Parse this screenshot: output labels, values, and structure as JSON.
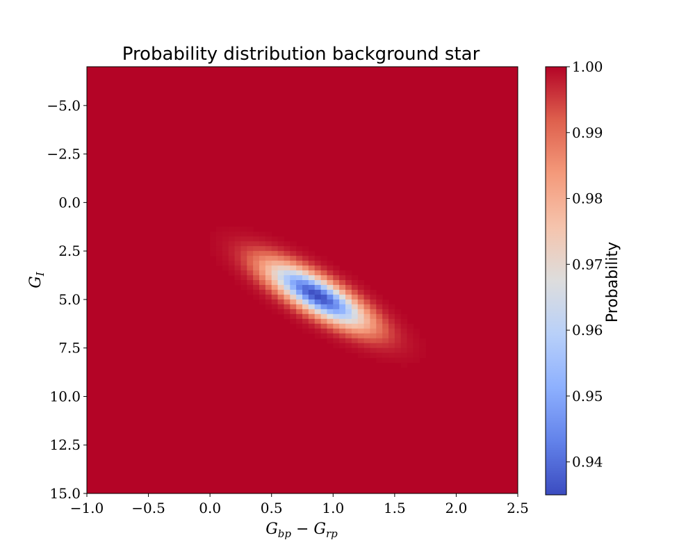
{
  "chart_data": {
    "type": "heatmap",
    "title": "Probability distribution background star",
    "xlabel": "G_bp − G_rp",
    "xlabel_parts": {
      "base1": "G",
      "sub1": "bp",
      "op": " − ",
      "base2": "G",
      "sub2": "rp"
    },
    "ylabel": "G_I",
    "ylabel_parts": {
      "base": "G",
      "sub": "I"
    },
    "xlim": [
      -1.0,
      2.5
    ],
    "ylim": [
      15.0,
      -7.0
    ],
    "y_inverted": true,
    "x_ticks": [
      -1.0,
      -0.5,
      0.0,
      0.5,
      1.0,
      1.5,
      2.0,
      2.5
    ],
    "x_tick_labels": [
      "−1.0",
      "−0.5",
      "0.0",
      "0.5",
      "1.0",
      "1.5",
      "2.0",
      "2.5"
    ],
    "y_ticks": [
      -5.0,
      -2.5,
      0.0,
      2.5,
      5.0,
      7.5,
      10.0,
      12.5,
      15.0
    ],
    "y_tick_labels": [
      "−5.0",
      "−2.5",
      "0.0",
      "2.5",
      "5.0",
      "7.5",
      "10.0",
      "12.5",
      "15.0"
    ],
    "colormap": "coolwarm",
    "colorbar": {
      "label": "Probability",
      "range": [
        0.935,
        1.0
      ],
      "ticks": [
        0.94,
        0.95,
        0.96,
        0.97,
        0.98,
        0.99,
        1.0
      ],
      "tick_labels": [
        "0.94",
        "0.95",
        "0.96",
        "0.97",
        "0.98",
        "0.99",
        "1.00"
      ]
    },
    "distribution": {
      "shape": "rotated gaussian dip",
      "center": [
        0.87,
        4.8
      ],
      "min_value": 0.935,
      "max_value": 1.0,
      "sigma_x": 0.27,
      "sigma_y": 1.1,
      "correlation": 0.8
    },
    "grid": false
  },
  "colors": {
    "coolwarm_low": "#3b4cc0",
    "coolwarm_mid": "#dddddd",
    "coolwarm_high": "#b40426"
  }
}
